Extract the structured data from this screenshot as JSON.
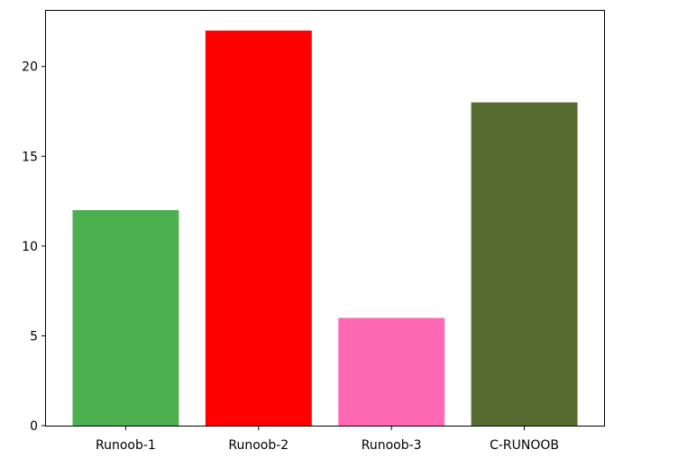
{
  "chart_data": {
    "type": "bar",
    "categories": [
      "Runoob-1",
      "Runoob-2",
      "Runoob-3",
      "C-RUNOOB"
    ],
    "values": [
      12,
      22,
      6,
      18
    ],
    "colors": [
      "#4CAF50",
      "#FF0000",
      "#FF69B4",
      "#556B2F"
    ],
    "ylim": [
      0,
      23.1
    ],
    "yticks": [
      0,
      5,
      10,
      15,
      20
    ],
    "ytick_labels": [
      "0",
      "5",
      "10",
      "15",
      "20"
    ],
    "grid": false
  }
}
